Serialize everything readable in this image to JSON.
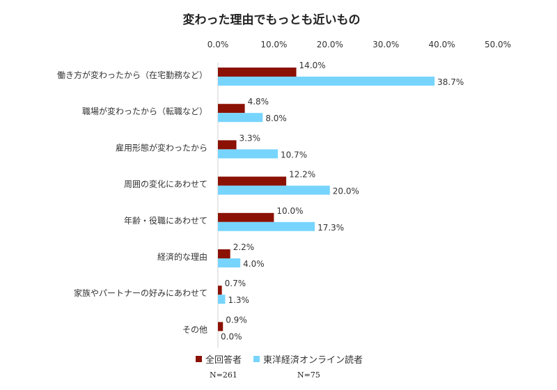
{
  "chart_data": {
    "type": "bar",
    "orientation": "horizontal",
    "title": "変わった理由でもっとも近いもの",
    "categories": [
      "働き方が変わったから（在宅勤務など）",
      "職場が変わったから（転職など）",
      "雇用形態が変わったから",
      "周囲の変化にあわせて",
      "年齢・役職にあわせて",
      "経済的な理由",
      "家族やパートナーの好みにあわせて",
      "その他"
    ],
    "series": [
      {
        "name": "全回答者",
        "color": "#8b1104",
        "values": [
          14.0,
          4.8,
          3.3,
          12.2,
          10.0,
          2.2,
          0.7,
          0.9
        ],
        "labels": [
          "14.0%",
          "4.8%",
          "3.3%",
          "12.2%",
          "10.0%",
          "2.2%",
          "0.7%",
          "0.9%"
        ],
        "n_label": "N=261"
      },
      {
        "name": "東洋経済オンライン読者",
        "color": "#77d5fd",
        "values": [
          38.7,
          8.0,
          10.7,
          20.0,
          17.3,
          4.0,
          1.3,
          0.0
        ],
        "labels": [
          "38.7%",
          "8.0%",
          "10.7%",
          "20.0%",
          "17.3%",
          "4.0%",
          "1.3%",
          "0.0%"
        ],
        "n_label": "N=75"
      }
    ],
    "xlim": [
      0,
      50
    ],
    "x_ticks": [
      "0.0%",
      "10.0%",
      "20.0%",
      "30.0%",
      "40.0%",
      "50.0%"
    ],
    "x_tick_values": [
      0,
      10,
      20,
      30,
      40,
      50
    ],
    "x_axis_position": "top",
    "grid": false,
    "legend_position": "bottom"
  }
}
